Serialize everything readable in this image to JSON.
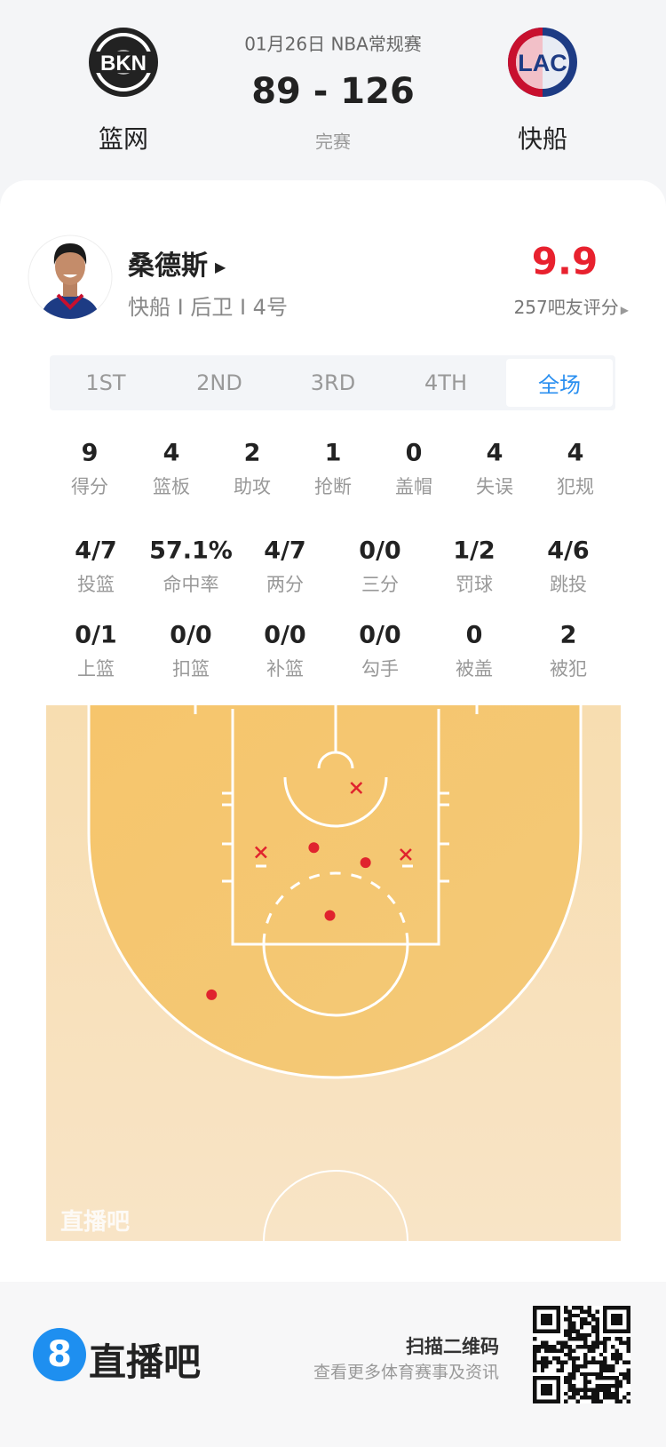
{
  "game": {
    "date_league": "01月26日 NBA常规赛",
    "score": "89 - 126",
    "status": "完赛",
    "home_team": {
      "name": "篮网",
      "logo_text": "BKN"
    },
    "away_team": {
      "name": "快船",
      "logo_text": "LAC"
    }
  },
  "player": {
    "name": "桑德斯",
    "info": "快船 I 后卫 I 4号",
    "rating": "9.9",
    "rating_count": "257吧友评分"
  },
  "tabs": [
    {
      "label": "1ST"
    },
    {
      "label": "2ND"
    },
    {
      "label": "3RD"
    },
    {
      "label": "4TH"
    },
    {
      "label": "全场",
      "active": true
    }
  ],
  "stats_row1": [
    {
      "value": "9",
      "label": "得分"
    },
    {
      "value": "4",
      "label": "篮板"
    },
    {
      "value": "2",
      "label": "助攻"
    },
    {
      "value": "1",
      "label": "抢断"
    },
    {
      "value": "0",
      "label": "盖帽"
    },
    {
      "value": "4",
      "label": "失误"
    },
    {
      "value": "4",
      "label": "犯规"
    }
  ],
  "stats_row2": [
    {
      "value": "4/7",
      "label": "投篮"
    },
    {
      "value": "57.1%",
      "label": "命中率"
    },
    {
      "value": "4/7",
      "label": "两分"
    },
    {
      "value": "0/0",
      "label": "三分"
    },
    {
      "value": "1/2",
      "label": "罚球"
    },
    {
      "value": "4/6",
      "label": "跳投"
    }
  ],
  "stats_row3": [
    {
      "value": "0/1",
      "label": "上篮"
    },
    {
      "value": "0/0",
      "label": "扣篮"
    },
    {
      "value": "0/0",
      "label": "补篮"
    },
    {
      "value": "0/0",
      "label": "勾手"
    },
    {
      "value": "0",
      "label": "被盖"
    },
    {
      "value": "2",
      "label": "被犯"
    }
  ],
  "shot_chart": {
    "watermark": "直播吧",
    "colors": {
      "paint": "#f5c66e",
      "floor": "#f7e2bf",
      "shot": "#e0232e"
    },
    "shots_feet_from_basket": [
      {
        "x": 1.8,
        "y": 1.7,
        "made": false
      },
      {
        "x": -6.5,
        "y": 7.3,
        "made": false
      },
      {
        "x": 6.1,
        "y": 7.5,
        "made": false
      },
      {
        "x": -1.9,
        "y": 6.9,
        "made": true
      },
      {
        "x": 2.6,
        "y": 8.2,
        "made": true
      },
      {
        "x": -0.5,
        "y": 12.8,
        "made": true
      },
      {
        "x": -10.8,
        "y": 19.7,
        "made": true
      }
    ]
  },
  "footer": {
    "brand": "直播吧",
    "brand_icon": "8",
    "scan_title": "扫描二维码",
    "scan_sub": "查看更多体育赛事及资讯",
    "accent": "#1e8ff0"
  }
}
